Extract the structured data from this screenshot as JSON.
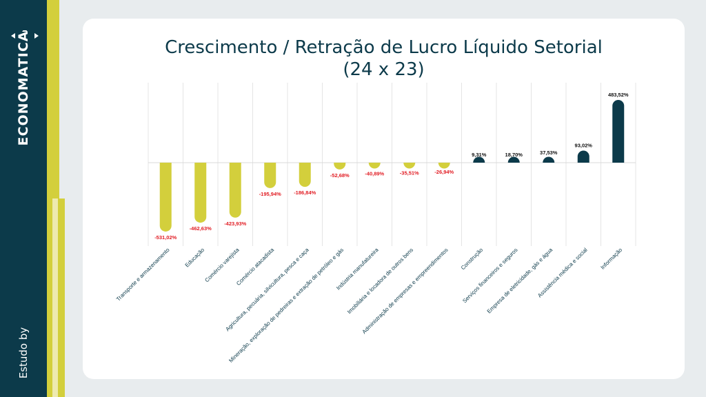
{
  "brand": {
    "name": "ECONOMATICA",
    "tagline": "Estudo by"
  },
  "colors": {
    "negative": "#d3cf3c",
    "positive": "#0c3a4a",
    "negative_label": "#e11b22",
    "positive_label": "#111111",
    "sidebar": "#0c3a4a",
    "accent": "#d3cf3c"
  },
  "chart_data": {
    "type": "bar",
    "title": "Crescimento / Retração de Lucro Líquido Setorial",
    "subtitle": "(24 x 23)",
    "categories": [
      "Transporte e armazenamento",
      "Educação",
      "Comércio varejista",
      "Comércio atacadista",
      "Agricultura, pecuária, silvicultura, pesca e caça",
      "Mineração, exploração de pedreiras e extração de petróleo e gás",
      "Indústria manufatureira",
      "Imobiliária e locadora de outros bens",
      "Administração de empresas e empreendimentos",
      "Construção",
      "Serviços financeiros e seguros",
      "Empresa de eletricidade, gás e água",
      "Assistência médica e social",
      "Informação"
    ],
    "values": [
      -531.02,
      -462.63,
      -423.93,
      -195.94,
      -186.84,
      -52.68,
      -40.89,
      -35.51,
      -26.94,
      9.31,
      18.7,
      37.53,
      93.02,
      483.52
    ],
    "data_labels": [
      "-531,02%",
      "-462,63%",
      "-423,93%",
      "-195,94%",
      "-186,84%",
      "-52,68%",
      "-40,89%",
      "-35,51%",
      "-26,94%",
      "9,31%",
      "18,70%",
      "37,53%",
      "93,02%",
      "483,52%"
    ],
    "xlabel": "",
    "ylabel": "",
    "grid": "vertical",
    "legend": "none"
  }
}
